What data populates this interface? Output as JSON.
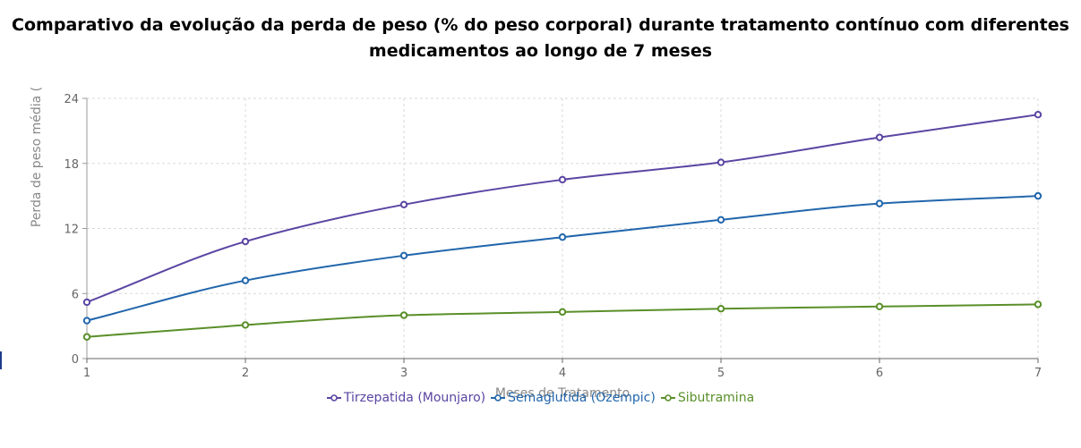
{
  "title_lines": [
    "Comparativo da evolução da perda de peso (% do peso corporal) durante tratamento contínuo com diferentes",
    "medicamentos ao longo de 7 meses"
  ],
  "chart_data": {
    "type": "line",
    "title": "Comparativo da evolução da perda de peso (% do peso corporal) durante tratamento contínuo com diferentes medicamentos ao longo de 7 meses",
    "xlabel": "Meses de Tratamento",
    "ylabel": "Perda de peso média (",
    "x": [
      1,
      2,
      3,
      4,
      5,
      6,
      7
    ],
    "xlim": [
      1,
      7
    ],
    "ylim": [
      0,
      24
    ],
    "yticks": [
      0,
      6,
      12,
      18,
      24
    ],
    "grid": true,
    "legend_position": "bottom",
    "series": [
      {
        "name": "Tirzepatida (Mounjaro)",
        "color": "#5b45a3",
        "values": [
          5.2,
          10.8,
          14.2,
          16.5,
          18.1,
          20.4,
          22.5
        ]
      },
      {
        "name": "Semaglutida (Ozempic)",
        "color": "#2166ac",
        "values": [
          3.5,
          7.2,
          9.5,
          11.2,
          12.8,
          14.3,
          15.0
        ]
      },
      {
        "name": "Sibutramina",
        "color": "#5a8f29",
        "values": [
          2.0,
          3.1,
          4.0,
          4.3,
          4.6,
          4.8,
          5.0
        ]
      }
    ]
  }
}
